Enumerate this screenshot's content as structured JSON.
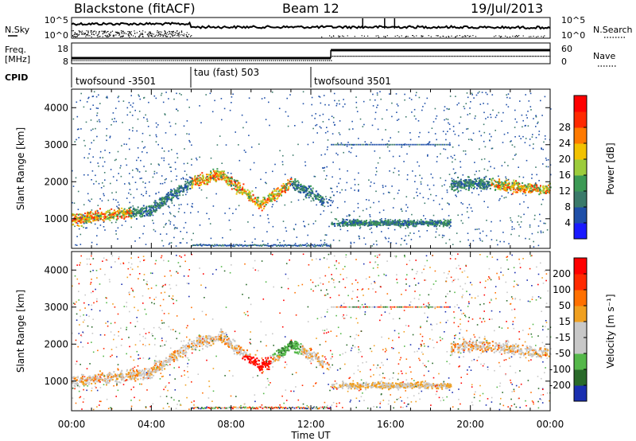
{
  "header": {
    "station": "Blackstone (fitACF)",
    "beam": "Beam 12",
    "date": "19/Jul/2013"
  },
  "side_labels": {
    "nsky": "N.Sky",
    "nsearch": "N.Search",
    "freq_line1": "Freq.",
    "freq_line2": "[MHz]",
    "nave": "Nave",
    "cpid": "CPID"
  },
  "colors": {
    "power_scale": [
      "#1a1aff",
      "#1f4fa8",
      "#3a7a6a",
      "#3c9a55",
      "#9ccc3c",
      "#f2c200",
      "#ff7a00",
      "#ff2a00",
      "#ff0000"
    ],
    "velocity_scale": [
      "#1a2fb0",
      "#2a6a2a",
      "#55b84a",
      "#c8c8c8",
      "#c8c8c8",
      "#f0a020",
      "#ff7000",
      "#ff2a00",
      "#ff0000"
    ]
  },
  "chart_data": [
    {
      "type": "line",
      "name": "noise_panel",
      "y_left_ticks": [
        "10^5",
        "10^0"
      ],
      "y_right_ticks": [
        "10^5",
        "10^0"
      ]
    },
    {
      "type": "line",
      "name": "freq_nave_panel",
      "y_left_ticks": [
        "18",
        "8"
      ],
      "y_right_ticks": [
        "60",
        "0"
      ]
    },
    {
      "type": "table",
      "name": "cpid_panel",
      "segments": [
        {
          "label": "twofsound -3501",
          "start": 0,
          "end": 6
        },
        {
          "label": "tau (fast) 503",
          "start": 6,
          "end": 12
        },
        {
          "label": "twofsound 3501",
          "start": 12,
          "end": 24
        }
      ]
    },
    {
      "type": "heatmap",
      "name": "power",
      "ylabel": "Slant Range [km]",
      "xlim": [
        0,
        24
      ],
      "ylim": [
        200,
        4500
      ],
      "y_ticks": [
        1000,
        2000,
        3000,
        4000
      ],
      "colorbar_label": "Power [dB]",
      "colorbar_ticks": [
        4,
        8,
        12,
        16,
        20,
        24,
        28
      ]
    },
    {
      "type": "heatmap",
      "name": "velocity",
      "ylabel": "Slant Range [km]",
      "xlim": [
        0,
        24
      ],
      "ylim": [
        200,
        4500
      ],
      "y_ticks": [
        1000,
        2000,
        3000,
        4000
      ],
      "colorbar_label": "Velocity [m s⁻¹]",
      "colorbar_ticks": [
        200,
        100,
        50,
        15,
        -15,
        -50,
        -100,
        -200
      ]
    }
  ],
  "x_axis": {
    "tick_labels": [
      "00:00",
      "04:00",
      "08:00",
      "12:00",
      "16:00",
      "20:00",
      "00:00"
    ],
    "label": "Time UT"
  }
}
